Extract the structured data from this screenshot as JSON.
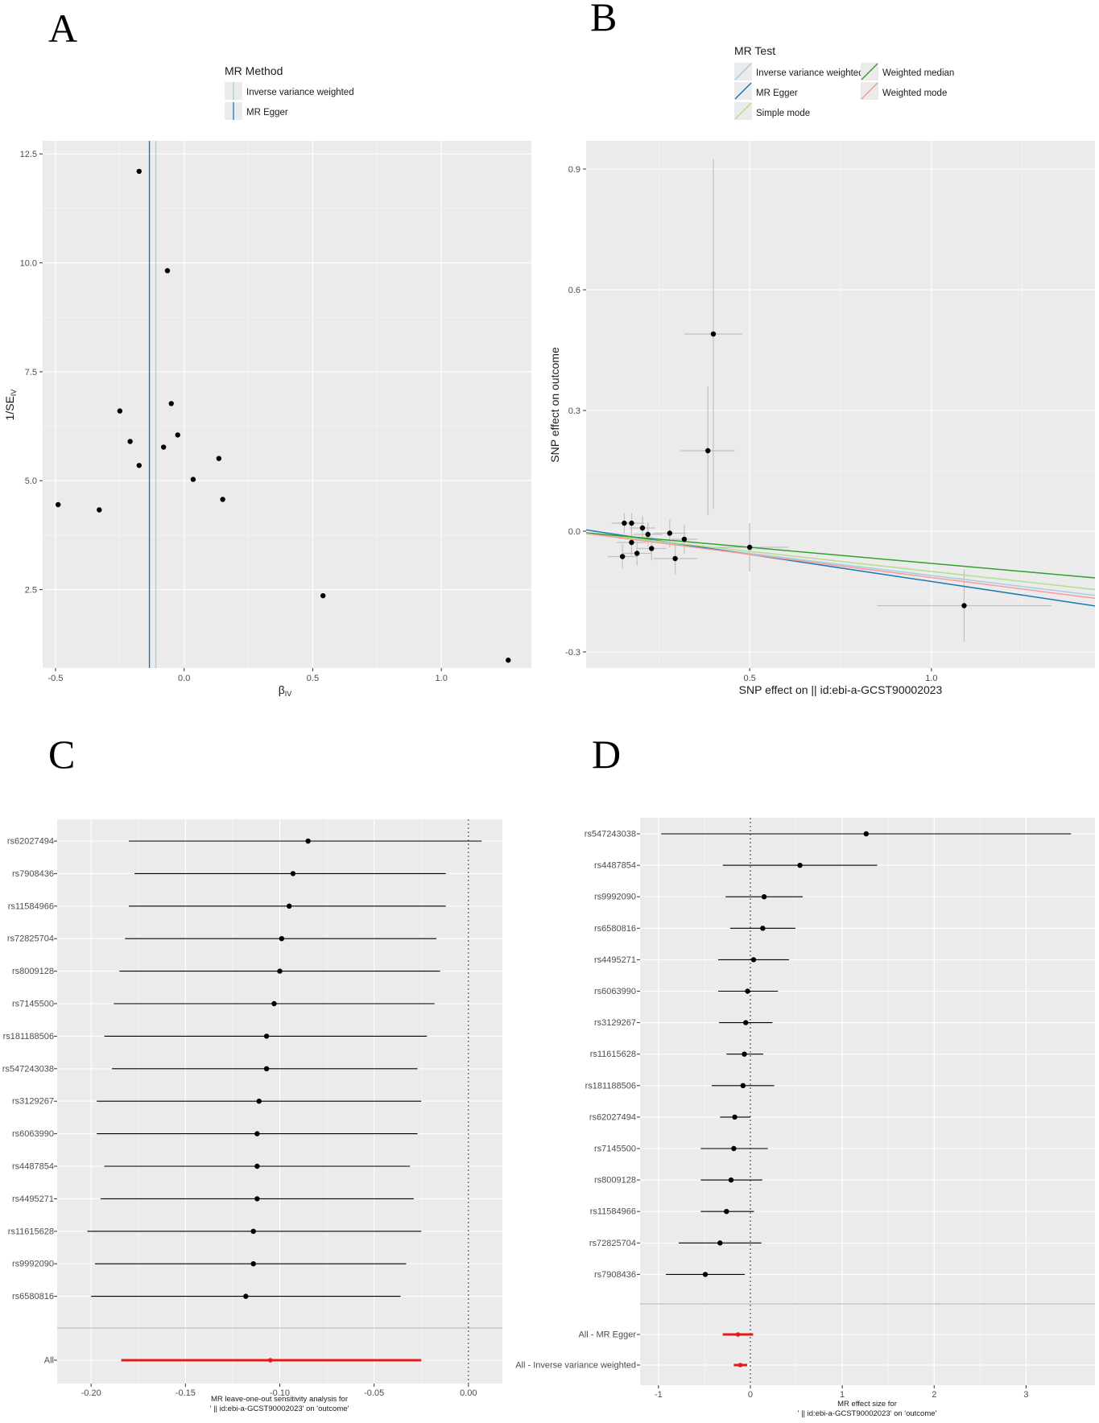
{
  "chart_data": [
    {
      "panel": "A",
      "type": "scatter",
      "legend": {
        "title": "MR Method",
        "entries": [
          {
            "label": "Inverse variance weighted",
            "color": "#a6cee3"
          },
          {
            "label": "MR Egger",
            "color": "#1f78b4"
          }
        ]
      },
      "xlabel": "β",
      "xlabel_sub": "IV",
      "ylabel": "1/SE",
      "ylabel_sub": "IV",
      "xlim": [
        -0.55,
        1.35
      ],
      "ylim": [
        0.7,
        12.8
      ],
      "xticks": [
        -0.5,
        0.0,
        0.5,
        1.0
      ],
      "xtick_labels": [
        "-0.5",
        "0.0",
        "0.5",
        "1.0"
      ],
      "yticks": [
        2.5,
        5.0,
        7.5,
        10.0,
        12.5
      ],
      "ytick_labels": [
        "2.5",
        "5.0",
        "7.5",
        "10.0",
        "12.5"
      ],
      "method_lines": [
        {
          "method": "Inverse variance weighted",
          "x": -0.11
        },
        {
          "method": "MR Egger",
          "x": -0.135
        }
      ],
      "points": [
        {
          "x": -0.49,
          "y": 4.45
        },
        {
          "x": -0.33,
          "y": 4.33
        },
        {
          "x": -0.25,
          "y": 6.6
        },
        {
          "x": -0.21,
          "y": 5.9
        },
        {
          "x": -0.175,
          "y": 5.35
        },
        {
          "x": -0.175,
          "y": 12.1
        },
        {
          "x": -0.08,
          "y": 5.77
        },
        {
          "x": -0.065,
          "y": 9.82
        },
        {
          "x": -0.05,
          "y": 6.77
        },
        {
          "x": -0.025,
          "y": 6.05
        },
        {
          "x": 0.035,
          "y": 5.03
        },
        {
          "x": 0.135,
          "y": 5.51
        },
        {
          "x": 0.15,
          "y": 4.57
        },
        {
          "x": 0.54,
          "y": 2.36
        },
        {
          "x": 1.26,
          "y": 0.88
        }
      ]
    },
    {
      "panel": "B",
      "type": "scatter",
      "legend": {
        "title": "MR Test",
        "entries": [
          {
            "label": "Inverse variance weighted",
            "color": "#a6cee3"
          },
          {
            "label": "MR Egger",
            "color": "#1f78b4"
          },
          {
            "label": "Simple mode",
            "color": "#b2df8a"
          },
          {
            "label": "Weighted median",
            "color": "#33a02c"
          },
          {
            "label": "Weighted mode",
            "color": "#fb9a99"
          }
        ]
      },
      "xlabel": "SNP effect on  || id:ebi-a-GCST90002023",
      "ylabel": "SNP effect on outcome",
      "xlim": [
        0.05,
        1.45
      ],
      "ylim": [
        -0.34,
        0.97
      ],
      "xticks": [
        0.5,
        1.0
      ],
      "xtick_labels": [
        "0.5",
        "1.0"
      ],
      "yticks": [
        -0.3,
        0.0,
        0.3,
        0.6,
        0.9
      ],
      "ytick_labels": [
        "-0.3",
        "0.0",
        "0.3",
        "0.6",
        "0.9"
      ],
      "points": [
        {
          "x": 0.15,
          "y": -0.063,
          "xerr": 0.04,
          "yerr": 0.03
        },
        {
          "x": 0.155,
          "y": 0.02,
          "xerr": 0.035,
          "yerr": 0.025
        },
        {
          "x": 0.175,
          "y": 0.02,
          "xerr": 0.035,
          "yerr": 0.025
        },
        {
          "x": 0.175,
          "y": -0.028,
          "xerr": 0.04,
          "yerr": 0.03
        },
        {
          "x": 0.19,
          "y": -0.055,
          "xerr": 0.04,
          "yerr": 0.03
        },
        {
          "x": 0.205,
          "y": 0.008,
          "xerr": 0.035,
          "yerr": 0.03
        },
        {
          "x": 0.22,
          "y": -0.008,
          "xerr": 0.04,
          "yerr": 0.03
        },
        {
          "x": 0.23,
          "y": -0.043,
          "xerr": 0.04,
          "yerr": 0.03
        },
        {
          "x": 0.28,
          "y": -0.005,
          "xerr": 0.045,
          "yerr": 0.035
        },
        {
          "x": 0.295,
          "y": -0.068,
          "xerr": 0.06,
          "yerr": 0.04
        },
        {
          "x": 0.32,
          "y": -0.02,
          "xerr": 0.035,
          "yerr": 0.035
        },
        {
          "x": 0.385,
          "y": 0.2,
          "xerr": 0.075,
          "yerr": 0.16
        },
        {
          "x": 0.4,
          "y": 0.49,
          "xerr": 0.08,
          "yerr": 0.435
        },
        {
          "x": 0.5,
          "y": -0.04,
          "xerr": 0.105,
          "yerr": 0.06
        },
        {
          "x": 1.09,
          "y": -0.185,
          "xerr": 0.24,
          "yerr": 0.09
        }
      ],
      "method_lines": [
        {
          "method": "Inverse variance weighted",
          "intercept": 0,
          "slope": -0.11
        },
        {
          "method": "MR Egger",
          "intercept": 0.01,
          "slope": -0.135
        },
        {
          "method": "Simple mode",
          "intercept": 0,
          "slope": -0.1
        },
        {
          "method": "Weighted median",
          "intercept": 0,
          "slope": -0.08
        },
        {
          "method": "Weighted mode",
          "intercept": 0,
          "slope": -0.115
        }
      ]
    },
    {
      "panel": "C",
      "type": "forest",
      "title_line1": "MR leave-one-out sensitivity analysis for",
      "title_line2": "' || id:ebi-a-GCST90002023' on 'outcome'",
      "xlim": [
        -0.218,
        0.018
      ],
      "xticks": [
        -0.2,
        -0.15,
        -0.1,
        -0.05,
        0.0
      ],
      "xtick_labels": [
        "-0.20",
        "-0.15",
        "-0.10",
        "-0.05",
        "0.00"
      ],
      "rows": [
        {
          "label": "rs62027494",
          "est": -0.085,
          "lo": -0.18,
          "hi": 0.007
        },
        {
          "label": "rs7908436",
          "est": -0.093,
          "lo": -0.177,
          "hi": -0.012
        },
        {
          "label": "rs11584966",
          "est": -0.095,
          "lo": -0.18,
          "hi": -0.012
        },
        {
          "label": "rs72825704",
          "est": -0.099,
          "lo": -0.182,
          "hi": -0.017
        },
        {
          "label": "rs8009128",
          "est": -0.1,
          "lo": -0.185,
          "hi": -0.015
        },
        {
          "label": "rs7145500",
          "est": -0.103,
          "lo": -0.188,
          "hi": -0.018
        },
        {
          "label": "rs181188506",
          "est": -0.107,
          "lo": -0.193,
          "hi": -0.022
        },
        {
          "label": "rs547243038",
          "est": -0.107,
          "lo": -0.189,
          "hi": -0.027
        },
        {
          "label": "rs3129267",
          "est": -0.111,
          "lo": -0.197,
          "hi": -0.025
        },
        {
          "label": "rs6063990",
          "est": -0.112,
          "lo": -0.197,
          "hi": -0.027
        },
        {
          "label": "rs4487854",
          "est": -0.112,
          "lo": -0.193,
          "hi": -0.031
        },
        {
          "label": "rs4495271",
          "est": -0.112,
          "lo": -0.195,
          "hi": -0.029
        },
        {
          "label": "rs11615628",
          "est": -0.114,
          "lo": -0.202,
          "hi": -0.025
        },
        {
          "label": "rs9992090",
          "est": -0.114,
          "lo": -0.198,
          "hi": -0.033
        },
        {
          "label": "rs6580816",
          "est": -0.118,
          "lo": -0.2,
          "hi": -0.036
        }
      ],
      "summary": {
        "label": "All",
        "est": -0.105,
        "lo": -0.184,
        "hi": -0.025
      }
    },
    {
      "panel": "D",
      "type": "forest",
      "title_line1": "MR effect size for",
      "title_line2": "' || id:ebi-a-GCST90002023' on 'outcome'",
      "xlim": [
        -1.2,
        3.75
      ],
      "xticks": [
        -1,
        0,
        1,
        2,
        3
      ],
      "xtick_labels": [
        "-1",
        "0",
        "1",
        "2",
        "3"
      ],
      "rows": [
        {
          "label": "rs547243038",
          "est": 1.26,
          "lo": -0.97,
          "hi": 3.49
        },
        {
          "label": "rs4487854",
          "est": 0.54,
          "lo": -0.3,
          "hi": 1.38
        },
        {
          "label": "rs9992090",
          "est": 0.15,
          "lo": -0.27,
          "hi": 0.57
        },
        {
          "label": "rs6580816",
          "est": 0.135,
          "lo": -0.22,
          "hi": 0.49
        },
        {
          "label": "rs4495271",
          "est": 0.035,
          "lo": -0.35,
          "hi": 0.42
        },
        {
          "label": "rs6063990",
          "est": -0.03,
          "lo": -0.35,
          "hi": 0.3
        },
        {
          "label": "rs3129267",
          "est": -0.05,
          "lo": -0.34,
          "hi": 0.24
        },
        {
          "label": "rs11615628",
          "est": -0.065,
          "lo": -0.26,
          "hi": 0.14
        },
        {
          "label": "rs181188506",
          "est": -0.08,
          "lo": -0.42,
          "hi": 0.26
        },
        {
          "label": "rs62027494",
          "est": -0.17,
          "lo": -0.33,
          "hi": 0.0
        },
        {
          "label": "rs7145500",
          "est": -0.18,
          "lo": -0.54,
          "hi": 0.19
        },
        {
          "label": "rs8009128",
          "est": -0.21,
          "lo": -0.54,
          "hi": 0.13
        },
        {
          "label": "rs11584966",
          "est": -0.26,
          "lo": -0.54,
          "hi": 0.04
        },
        {
          "label": "rs72825704",
          "est": -0.33,
          "lo": -0.78,
          "hi": 0.12
        },
        {
          "label": "rs7908436",
          "est": -0.49,
          "lo": -0.92,
          "hi": -0.06
        }
      ],
      "summary_rows": [
        {
          "label": "All - MR Egger",
          "est": -0.135,
          "lo": -0.3,
          "hi": 0.03
        },
        {
          "label": "All - Inverse variance weighted",
          "est": -0.11,
          "lo": -0.18,
          "hi": -0.035
        }
      ]
    }
  ],
  "panel_letters": [
    "A",
    "B",
    "C",
    "D"
  ],
  "colors": {
    "panel_bg": "#ebebeb",
    "grid": "#ffffff",
    "point": "#000000",
    "summary": "#e41a1c",
    "errbar": "#c0c0c0"
  }
}
